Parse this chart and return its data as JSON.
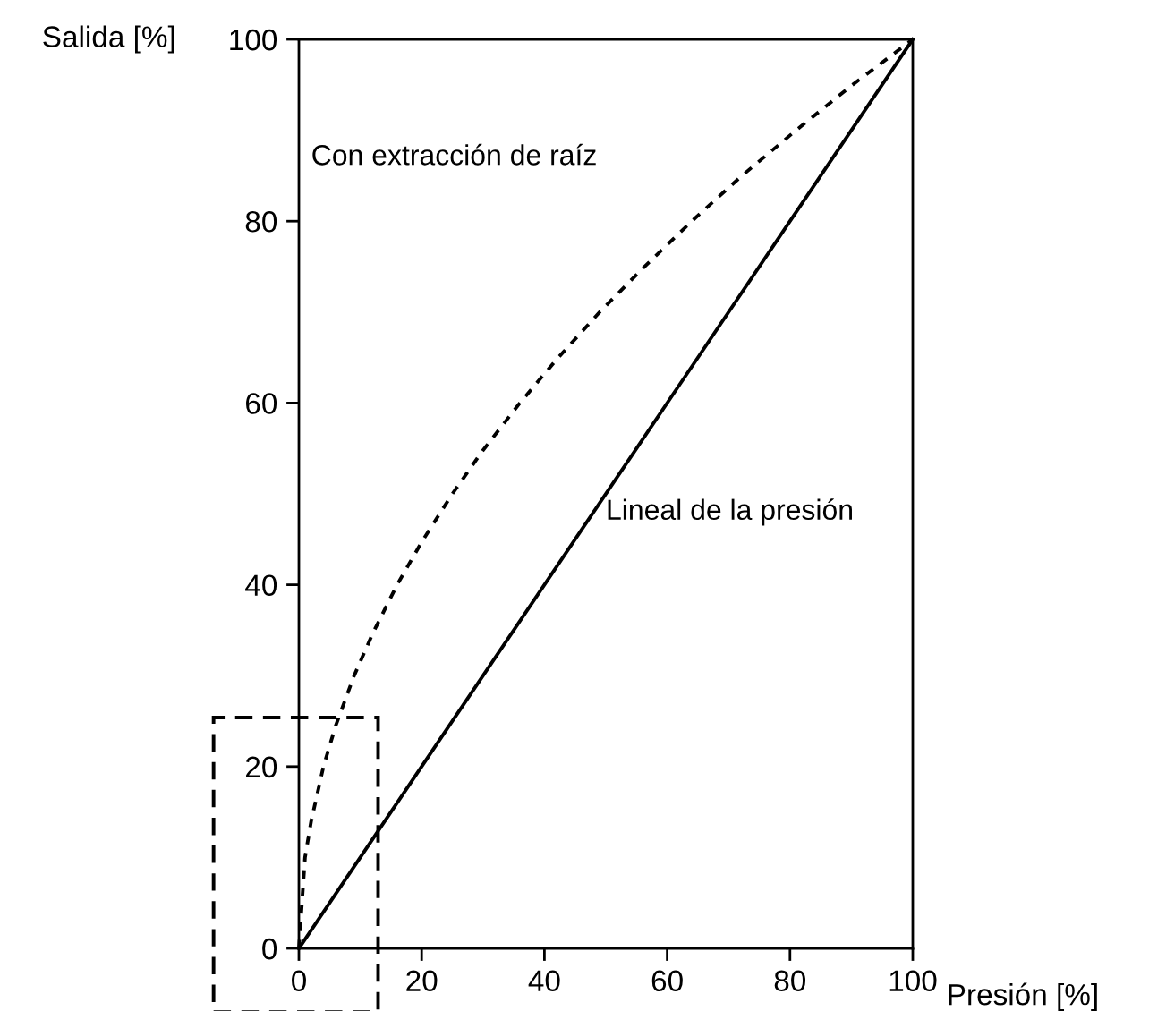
{
  "chart_data": {
    "type": "line",
    "xlabel": "Presión [%]",
    "ylabel": "Salida [%]",
    "series": [
      {
        "x": [
          0,
          1,
          2,
          4,
          6,
          9,
          12,
          16,
          20,
          25,
          30,
          36,
          42,
          49,
          56,
          64,
          72,
          81,
          90,
          100
        ],
        "values": [
          0,
          10,
          14,
          20,
          24.5,
          30,
          34.6,
          40,
          44.7,
          50,
          54.8,
          60,
          64.8,
          70,
          74.8,
          80,
          84.9,
          90,
          94.9,
          100
        ],
        "color": "#000000",
        "line_style": "dotted"
      },
      {
        "x": [
          0,
          100
        ],
        "values": [
          0,
          100
        ],
        "color": "#000000",
        "line_style": "solid"
      }
    ],
    "annotations": [
      "Con extracción de raíz",
      {
        "text": "Lineal de la presión",
        "x": 50,
        "y": 48
      }
    ],
    "xlim": [
      0,
      100
    ],
    "ylim": [
      0,
      100
    ],
    "xticks": [
      0,
      20,
      40,
      60,
      80,
      100
    ],
    "yticks": [
      0,
      20,
      40,
      60,
      80,
      100
    ],
    "grid": false,
    "legend": false
  }
}
